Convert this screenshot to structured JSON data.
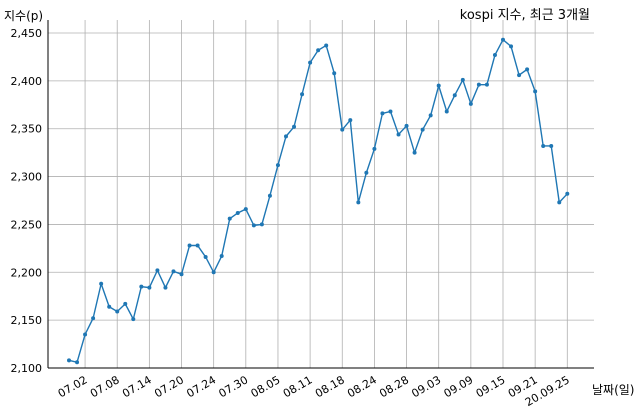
{
  "chart_data": {
    "type": "line",
    "title": "kospi 지수, 최근 3개월",
    "xlabel": "날짜(일)",
    "ylabel": "지수(p)",
    "ylim": [
      2100,
      2450
    ],
    "yticks": [
      2100,
      2150,
      2200,
      2250,
      2300,
      2350,
      2400,
      2450
    ],
    "ytick_labels": [
      "2,100",
      "2,150",
      "2,200",
      "2,250",
      "2,300",
      "2,350",
      "2,400",
      "2,450"
    ],
    "xtick_labels": [
      "07.02",
      "07.08",
      "07.14",
      "07.20",
      "07.24",
      "07.30",
      "08.05",
      "08.11",
      "08.18",
      "08.24",
      "08.28",
      "09.03",
      "09.09",
      "09.15",
      "09.21",
      "20.09.25"
    ],
    "xtick_index": [
      2,
      6,
      10,
      14,
      18,
      22,
      26,
      30,
      34,
      38,
      42,
      46,
      50,
      54,
      58,
      62
    ],
    "grid": true,
    "legend": "none",
    "color": "#1f77b4",
    "series": [
      {
        "values": [
          2108,
          2106,
          2135,
          2152,
          2188,
          2164,
          2159,
          2167,
          2151,
          2185,
          2184,
          2202,
          2184,
          2201,
          2198,
          2228,
          2228,
          2216,
          2200,
          2217,
          2256,
          2262,
          2266,
          2249,
          2250,
          2280,
          2312,
          2342,
          2352,
          2386,
          2419,
          2432,
          2437,
          2408,
          2349,
          2359,
          2273,
          2304,
          2329,
          2366,
          2368,
          2344,
          2353,
          2325,
          2349,
          2364,
          2395,
          2368,
          2385,
          2401,
          2376,
          2396,
          2396,
          2427,
          2443,
          2436,
          2406,
          2412,
          2389,
          2332,
          2332,
          2273,
          2282
        ]
      }
    ]
  }
}
